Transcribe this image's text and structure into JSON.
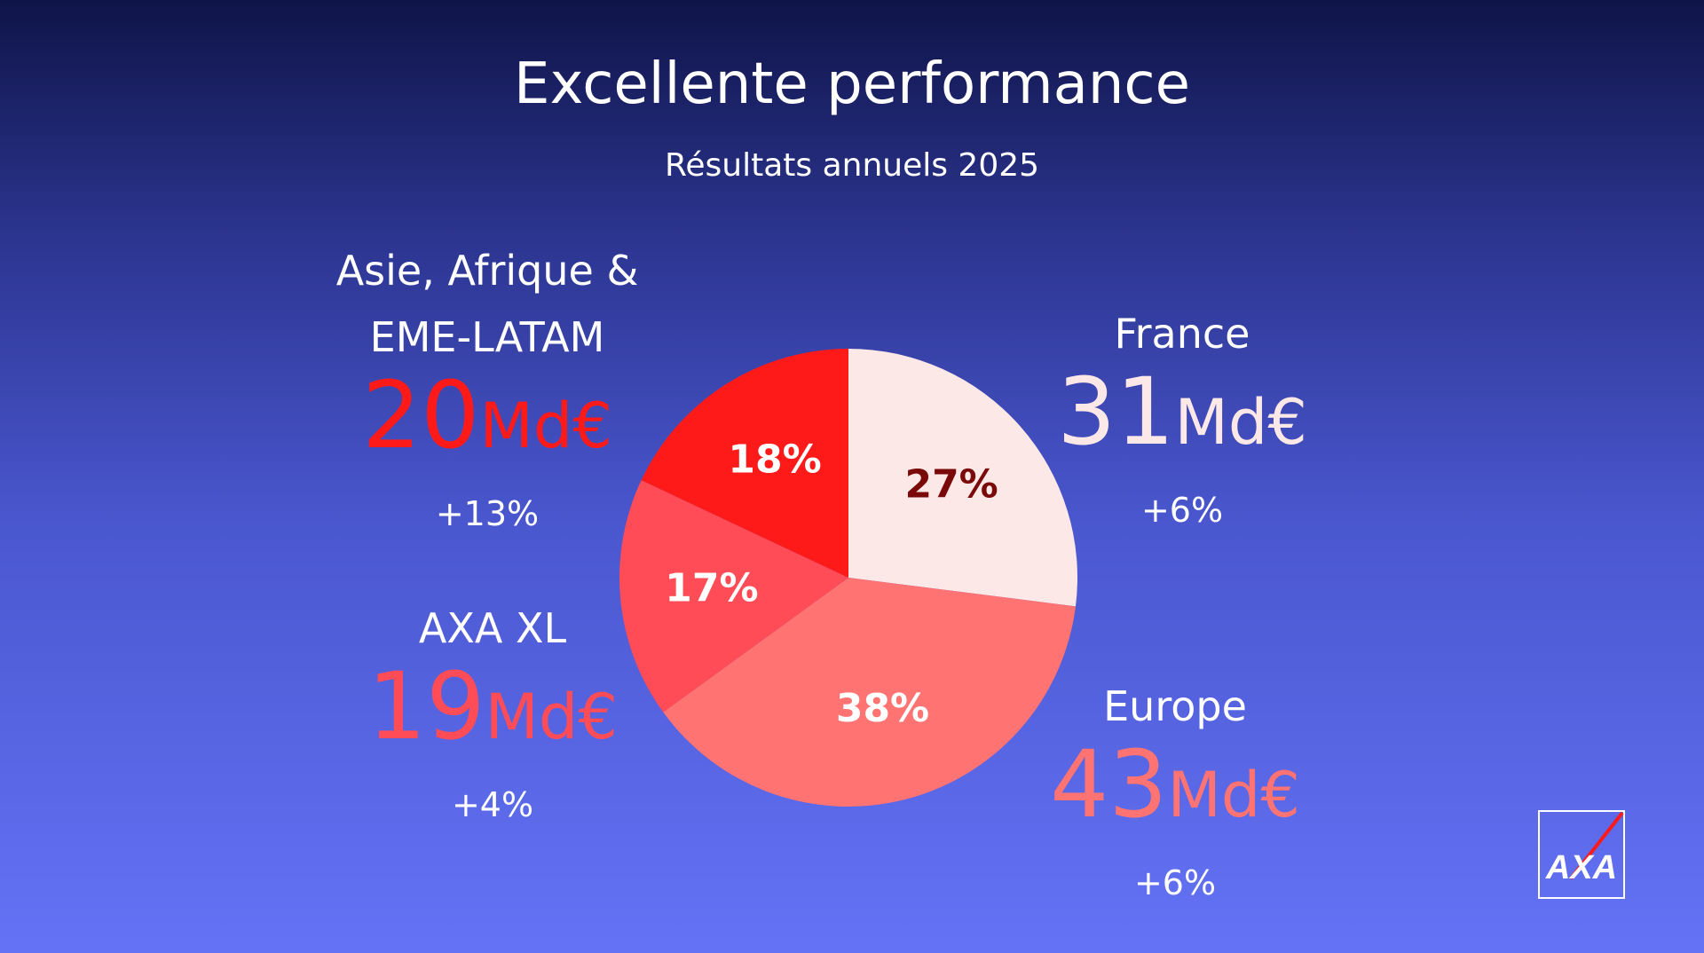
{
  "chart_data": {
    "type": "pie",
    "title": "Excellente performance",
    "subtitle": "Résultats annuels 2025",
    "categories": [
      "France",
      "Europe",
      "AXA XL",
      "Asie, Afrique & EME-LATAM"
    ],
    "values": [
      27,
      38,
      17,
      18
    ],
    "value_labels": [
      "27%",
      "38%",
      "17%",
      "18%"
    ],
    "colors": [
      "#fde8e8",
      "#ff7373",
      "#ff4c56",
      "#ff1a1a"
    ],
    "label_colors": [
      "#7a0a0a",
      "#ffffff",
      "#ffffff",
      "#ffffff"
    ],
    "amounts": [
      31,
      43,
      19,
      20
    ],
    "amount_unit": "Md€",
    "growth": [
      "+6%",
      "+6%",
      "+4%",
      "+13%"
    ]
  },
  "logo": "AXA"
}
